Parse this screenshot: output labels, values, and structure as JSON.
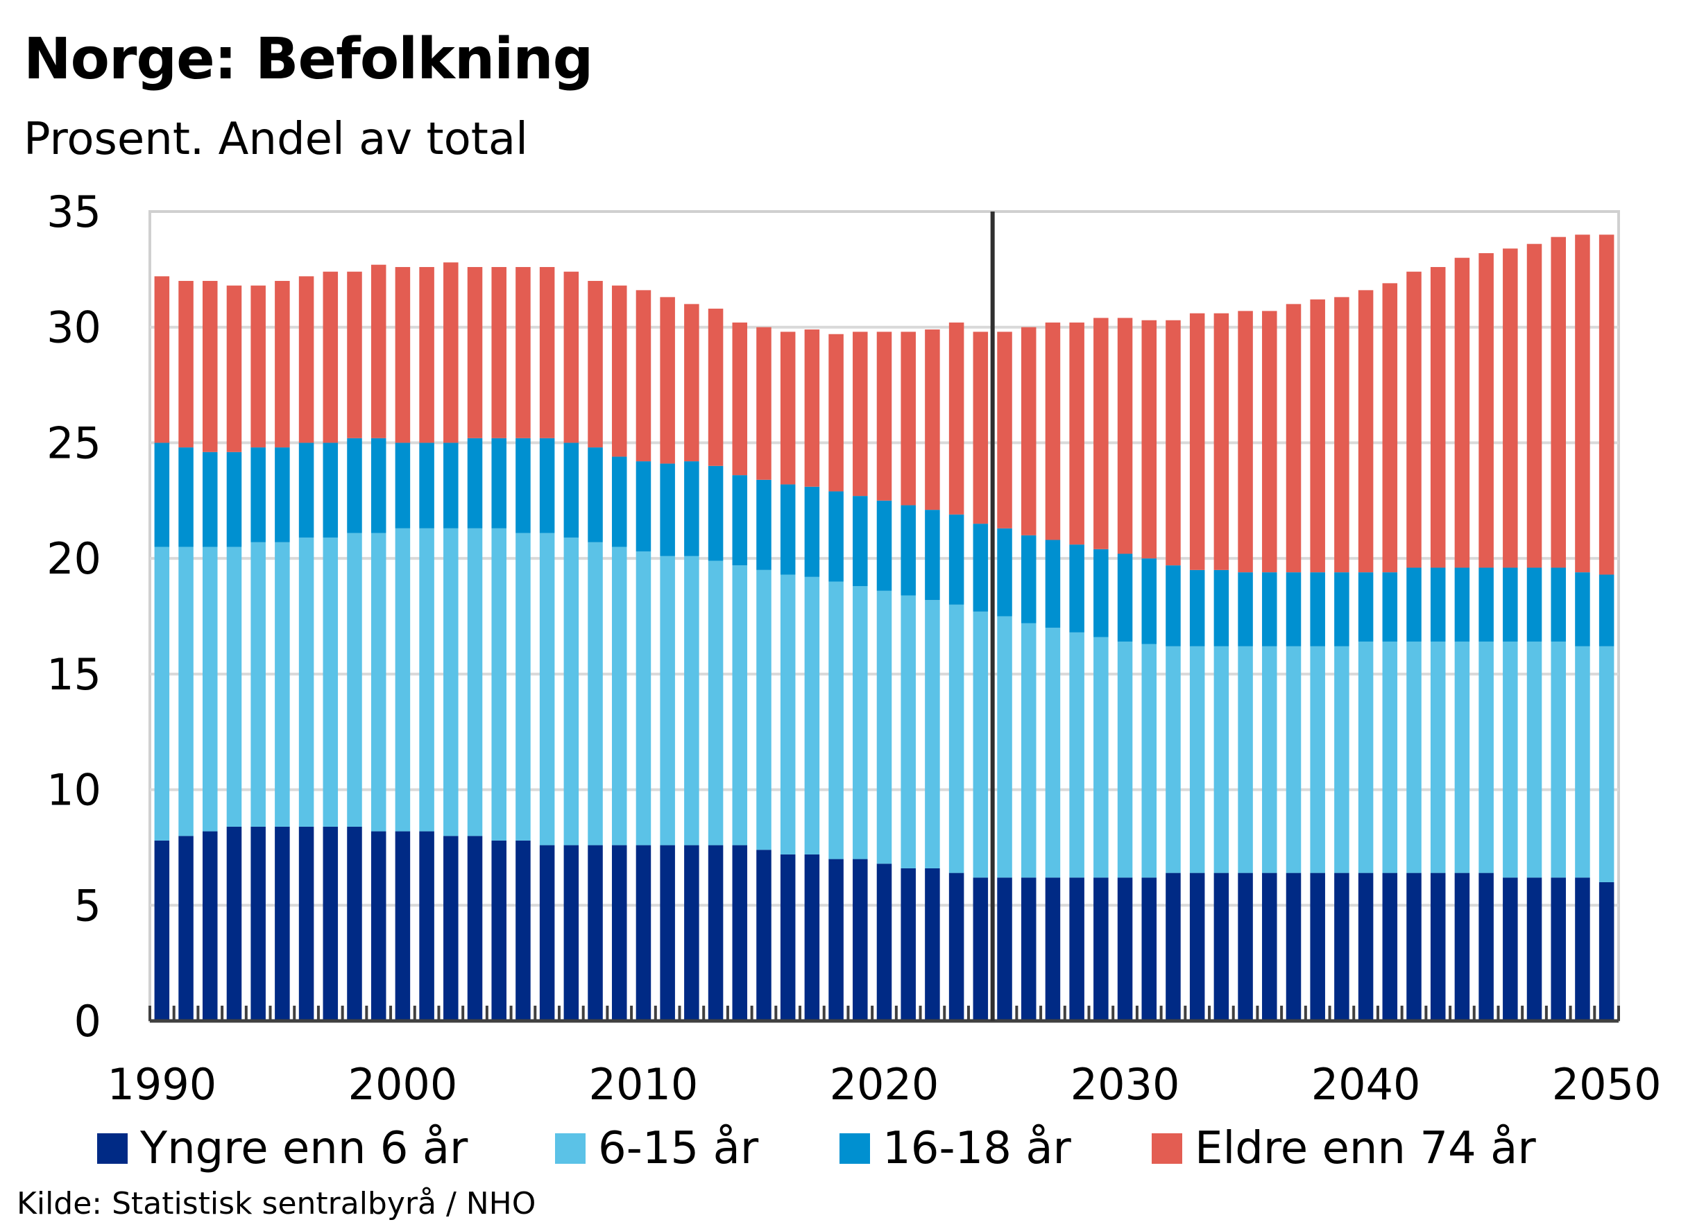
{
  "title": "Norge:  Befolkning",
  "subtitle": "Prosent. Andel av total",
  "source": "Kilde: Statistisk sentralbyrå / NHO",
  "chart_data": {
    "type": "bar",
    "stacked": true,
    "categories": [
      1990,
      1991,
      1992,
      1993,
      1994,
      1995,
      1996,
      1997,
      1998,
      1999,
      2000,
      2001,
      2002,
      2003,
      2004,
      2005,
      2006,
      2007,
      2008,
      2009,
      2010,
      2011,
      2012,
      2013,
      2014,
      2015,
      2016,
      2017,
      2018,
      2019,
      2020,
      2021,
      2022,
      2023,
      2024,
      2025,
      2026,
      2027,
      2028,
      2029,
      2030,
      2031,
      2032,
      2033,
      2034,
      2035,
      2036,
      2037,
      2038,
      2039,
      2040,
      2041,
      2042,
      2043,
      2044,
      2045,
      2046,
      2047,
      2048,
      2049,
      2050
    ],
    "series": [
      {
        "name": "Yngre enn 6 år",
        "color": "#002a85",
        "values": [
          7.8,
          8.0,
          8.2,
          8.4,
          8.4,
          8.4,
          8.4,
          8.4,
          8.4,
          8.2,
          8.2,
          8.2,
          8.0,
          8.0,
          7.8,
          7.8,
          7.6,
          7.6,
          7.6,
          7.6,
          7.6,
          7.6,
          7.6,
          7.6,
          7.6,
          7.4,
          7.2,
          7.2,
          7.0,
          7.0,
          6.8,
          6.6,
          6.6,
          6.4,
          6.2,
          6.2,
          6.2,
          6.2,
          6.2,
          6.2,
          6.2,
          6.2,
          6.4,
          6.4,
          6.4,
          6.4,
          6.4,
          6.4,
          6.4,
          6.4,
          6.4,
          6.4,
          6.4,
          6.4,
          6.4,
          6.4,
          6.2,
          6.2,
          6.2,
          6.2,
          6.0
        ]
      },
      {
        "name": "6-15 år",
        "color": "#5bc2e7",
        "values": [
          12.7,
          12.5,
          12.3,
          12.1,
          12.3,
          12.3,
          12.5,
          12.5,
          12.7,
          12.9,
          13.1,
          13.1,
          13.3,
          13.3,
          13.5,
          13.3,
          13.5,
          13.3,
          13.1,
          12.9,
          12.7,
          12.5,
          12.5,
          12.3,
          12.1,
          12.1,
          12.1,
          12.0,
          12.0,
          11.8,
          11.8,
          11.8,
          11.6,
          11.6,
          11.5,
          11.3,
          11.0,
          10.8,
          10.6,
          10.4,
          10.2,
          10.1,
          9.8,
          9.8,
          9.8,
          9.8,
          9.8,
          9.8,
          9.8,
          9.8,
          10.0,
          10.0,
          10.0,
          10.0,
          10.0,
          10.0,
          10.2,
          10.2,
          10.2,
          10.0,
          10.2
        ]
      },
      {
        "name": "16-18 år",
        "color": "#0090d0",
        "values": [
          4.5,
          4.3,
          4.1,
          4.1,
          4.1,
          4.1,
          4.1,
          4.1,
          4.1,
          4.1,
          3.7,
          3.7,
          3.7,
          3.9,
          3.9,
          4.1,
          4.1,
          4.1,
          4.1,
          3.9,
          3.9,
          4.0,
          4.1,
          4.1,
          3.9,
          3.9,
          3.9,
          3.9,
          3.9,
          3.9,
          3.9,
          3.9,
          3.9,
          3.9,
          3.8,
          3.8,
          3.8,
          3.8,
          3.8,
          3.8,
          3.8,
          3.7,
          3.5,
          3.3,
          3.3,
          3.2,
          3.2,
          3.2,
          3.2,
          3.2,
          3.0,
          3.0,
          3.2,
          3.2,
          3.2,
          3.2,
          3.2,
          3.2,
          3.2,
          3.2,
          3.1
        ]
      },
      {
        "name": "Eldre enn 74 år",
        "color": "#e35d52",
        "values": [
          7.2,
          7.2,
          7.4,
          7.2,
          7.0,
          7.2,
          7.2,
          7.4,
          7.2,
          7.5,
          7.6,
          7.6,
          7.8,
          7.4,
          7.4,
          7.4,
          7.4,
          7.4,
          7.2,
          7.4,
          7.4,
          7.2,
          6.8,
          6.8,
          6.6,
          6.6,
          6.6,
          6.8,
          6.8,
          7.1,
          7.3,
          7.5,
          7.8,
          8.3,
          8.3,
          8.5,
          9.0,
          9.4,
          9.6,
          10.0,
          10.2,
          10.3,
          10.6,
          11.1,
          11.1,
          11.3,
          11.3,
          11.6,
          11.8,
          11.9,
          12.2,
          12.5,
          12.8,
          13.0,
          13.4,
          13.6,
          13.8,
          14.0,
          14.3,
          14.6,
          14.7
        ]
      }
    ],
    "ylim": [
      0,
      35
    ],
    "yticks": [
      0,
      5,
      10,
      15,
      20,
      25,
      30,
      35
    ],
    "xticks": [
      1990,
      2000,
      2010,
      2020,
      2030,
      2040,
      2050
    ],
    "vline_x": 2024.5,
    "grid": "horizontal",
    "legend_position": "bottom",
    "xlabel": "",
    "ylabel": ""
  }
}
